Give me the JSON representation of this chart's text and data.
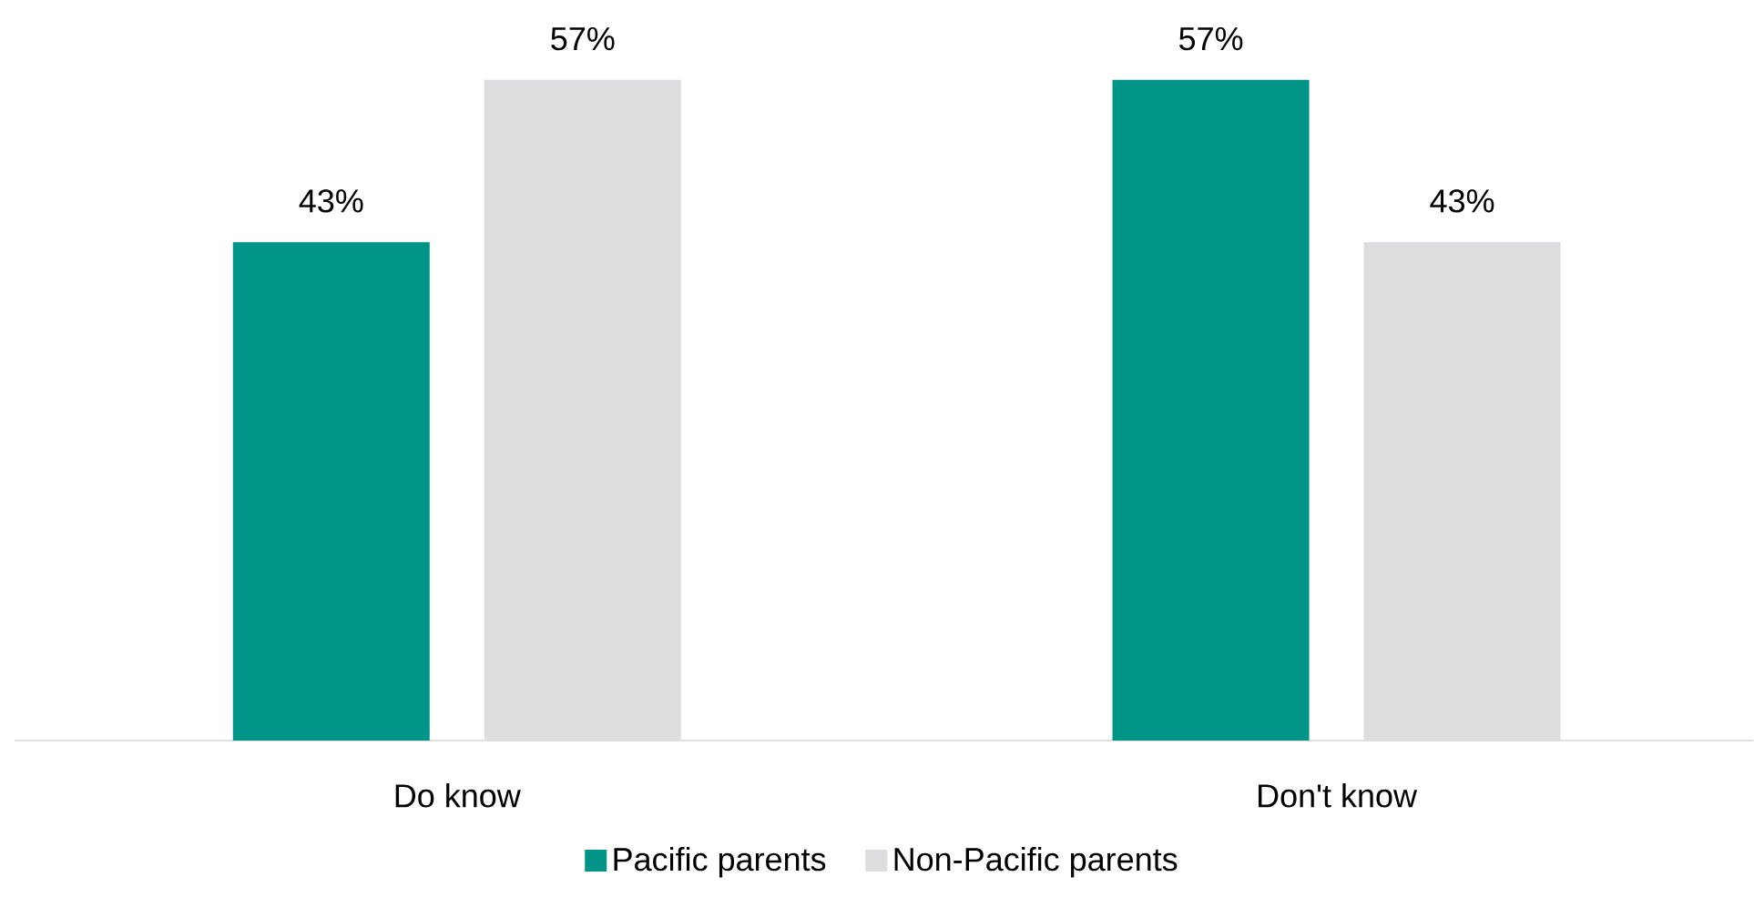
{
  "chart_data": {
    "type": "bar",
    "categories": [
      "Do know",
      "Don't know"
    ],
    "series": [
      {
        "name": "Pacific parents",
        "color": "#009488",
        "values": [
          43,
          57
        ],
        "value_labels": [
          "43%",
          "57%"
        ]
      },
      {
        "name": "Non-Pacific parents",
        "color": "#dcdddf",
        "values": [
          57,
          43
        ],
        "value_labels": [
          "57%",
          "43%"
        ]
      }
    ],
    "legend": "bottom"
  }
}
